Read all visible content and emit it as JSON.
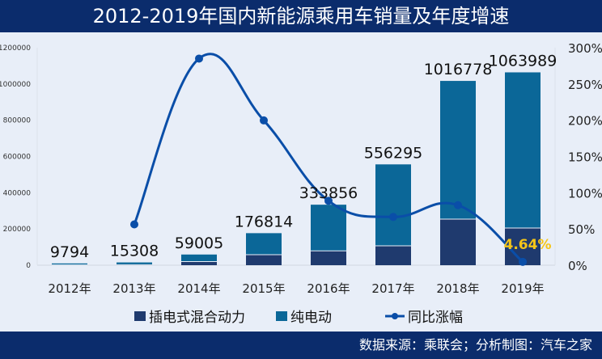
{
  "title": "2012-2019年国内新能源乘用车销量及年度增速",
  "footer": "数据来源：乘联会；分析制图：汽车之家",
  "colors": {
    "header": "#0b2c6c",
    "phev": "#1f3a6e",
    "bev": "#0b6798",
    "line": "#0a4ea8",
    "highlight": "#f5c518",
    "background": "#e8eef8"
  },
  "chart_data": {
    "type": "bar+line",
    "categories": [
      "2012年",
      "2013年",
      "2014年",
      "2015年",
      "2016年",
      "2017年",
      "2018年",
      "2019年"
    ],
    "totals": [
      9794,
      15308,
      59005,
      176814,
      333856,
      556295,
      1016778,
      1063989
    ],
    "total_labels": [
      "9794",
      "15308",
      "59005",
      "176814",
      "333856",
      "556295",
      "1016778",
      "1063989"
    ],
    "series": [
      {
        "name": "插电式混合动力",
        "type": "bar",
        "stack": true,
        "values": [
          1400,
          3000,
          20000,
          58000,
          79000,
          107000,
          254000,
          205000
        ]
      },
      {
        "name": "纯电动",
        "type": "bar",
        "stack": true,
        "values": [
          8394,
          12308,
          39005,
          118814,
          254856,
          449295,
          762778,
          858989
        ]
      },
      {
        "name": "同比涨幅",
        "type": "line",
        "axis": "right",
        "values": [
          null,
          56.3,
          285,
          199.7,
          88.8,
          66.6,
          82.8,
          4.64
        ]
      }
    ],
    "highlight_label": "4.64%",
    "left_axis": {
      "ylim": [
        0,
        1200000
      ],
      "ticks": [
        "0",
        "200000",
        "400000",
        "600000",
        "800000",
        "1000000",
        "1200000"
      ]
    },
    "right_axis": {
      "ylim": [
        0,
        300
      ],
      "ticks": [
        "0%",
        "50%",
        "100%",
        "150%",
        "200%",
        "250%",
        "300%"
      ]
    },
    "grid": false,
    "legend": "bottom"
  }
}
